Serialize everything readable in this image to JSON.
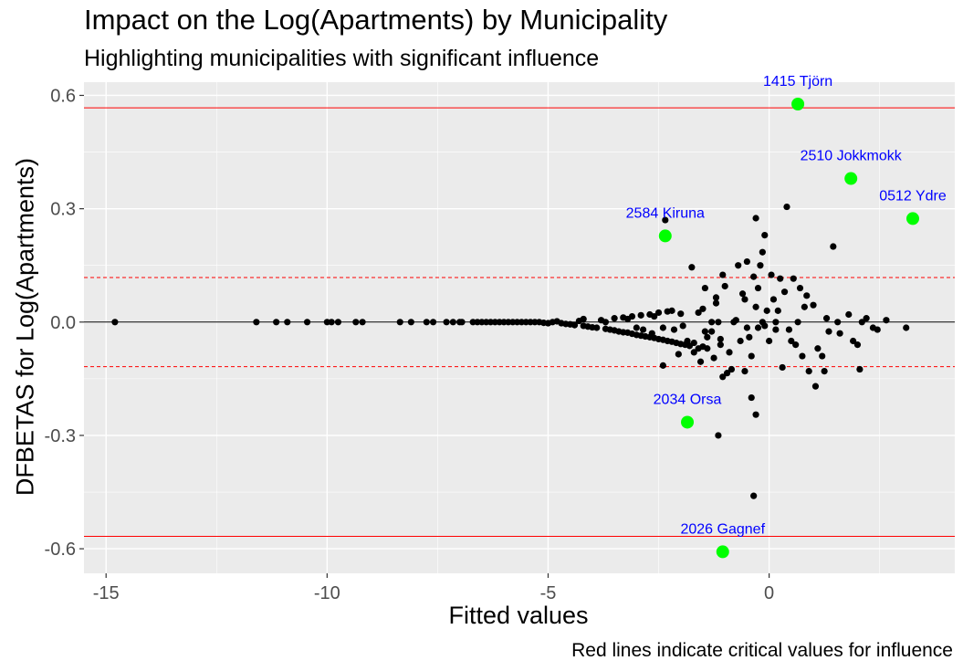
{
  "chart_data": {
    "type": "scatter",
    "title": "Impact on the Log(Apartments) by Municipality",
    "subtitle": "Highlighting municipalities with significant influence",
    "caption": "Red lines indicate critical values for influence",
    "xlabel": "Fitted values",
    "ylabel": "DFBETAS for Log(Apartments)",
    "xlim": [
      -15.5,
      4.2
    ],
    "ylim": [
      -0.665,
      0.635
    ],
    "x_ticks": [
      -15,
      -10,
      -5,
      0
    ],
    "y_ticks": [
      -0.6,
      -0.3,
      0.0,
      0.3,
      0.6
    ],
    "x_tick_labels": [
      "-15",
      "-10",
      "-5",
      "0"
    ],
    "y_tick_labels": [
      "-0.6",
      "-0.3",
      "0.0",
      "0.3",
      "0.6"
    ],
    "grid": true,
    "colors": {
      "panel_background": "#ebebeb",
      "grid": "#ffffff",
      "points": "#000000",
      "highlight_points": "#00ff00",
      "highlight_labels": "#0000ff",
      "critical_lines": "#ff0000",
      "zero_line": "#000000"
    },
    "reference_lines": {
      "zero": 0.0,
      "critical_solid": [
        0.567,
        -0.567
      ],
      "critical_dashed": [
        0.118,
        -0.118
      ]
    },
    "highlighted": [
      {
        "label": "1415 Tjörn",
        "x": 0.65,
        "y": 0.577
      },
      {
        "label": "2510 Jokkmokk",
        "x": 1.85,
        "y": 0.38
      },
      {
        "label": "0512 Ydre",
        "x": 3.25,
        "y": 0.274
      },
      {
        "label": "2584 Kiruna",
        "x": -2.35,
        "y": 0.228
      },
      {
        "label": "2034 Orsa",
        "x": -1.85,
        "y": -0.265
      },
      {
        "label": "2026 Gagnef",
        "x": -1.05,
        "y": -0.608
      }
    ],
    "points": [
      [
        -14.8,
        0.0
      ],
      [
        -11.6,
        0.0
      ],
      [
        -11.15,
        0.0
      ],
      [
        -10.9,
        0.0
      ],
      [
        -10.45,
        0.0
      ],
      [
        -10.0,
        0.0
      ],
      [
        -9.9,
        0.0
      ],
      [
        -9.75,
        0.0
      ],
      [
        -9.35,
        0.0
      ],
      [
        -9.2,
        0.0
      ],
      [
        -8.35,
        0.0
      ],
      [
        -8.1,
        0.0
      ],
      [
        -7.75,
        0.0
      ],
      [
        -7.6,
        0.0
      ],
      [
        -7.3,
        0.0
      ],
      [
        -7.15,
        0.0
      ],
      [
        -7.0,
        0.0
      ],
      [
        -6.95,
        0.0
      ],
      [
        -6.7,
        0.0
      ],
      [
        -6.6,
        0.0
      ],
      [
        -6.5,
        0.0
      ],
      [
        -6.4,
        0.0
      ],
      [
        -6.3,
        0.0
      ],
      [
        -6.2,
        0.0
      ],
      [
        -6.1,
        0.0
      ],
      [
        -6.0,
        0.0
      ],
      [
        -5.9,
        0.0
      ],
      [
        -5.8,
        0.0
      ],
      [
        -5.7,
        0.0
      ],
      [
        -5.6,
        0.0
      ],
      [
        -5.5,
        0.0
      ],
      [
        -5.4,
        0.0
      ],
      [
        -5.3,
        0.0
      ],
      [
        -5.2,
        0.0
      ],
      [
        -5.1,
        -0.002
      ],
      [
        -5.0,
        -0.003
      ],
      [
        -4.9,
        0.0
      ],
      [
        -4.8,
        0.002
      ],
      [
        -4.7,
        -0.003
      ],
      [
        -4.6,
        -0.005
      ],
      [
        -4.5,
        -0.006
      ],
      [
        -4.4,
        -0.008
      ],
      [
        -4.3,
        0.003
      ],
      [
        -4.2,
        -0.01
      ],
      [
        -4.1,
        -0.012
      ],
      [
        -4.0,
        -0.014
      ],
      [
        -3.9,
        -0.015
      ],
      [
        -3.8,
        0.005
      ],
      [
        -3.7,
        -0.018
      ],
      [
        -3.6,
        -0.02
      ],
      [
        -3.5,
        -0.022
      ],
      [
        -3.4,
        -0.025
      ],
      [
        -3.3,
        -0.027
      ],
      [
        -3.2,
        -0.028
      ],
      [
        -3.1,
        -0.031
      ],
      [
        -3.0,
        -0.034
      ],
      [
        -2.9,
        -0.036
      ],
      [
        -2.85,
        -0.02
      ],
      [
        -2.8,
        -0.038
      ],
      [
        -2.7,
        -0.04
      ],
      [
        -2.6,
        -0.042
      ],
      [
        -2.5,
        -0.045
      ],
      [
        -2.4,
        -0.047
      ],
      [
        -2.3,
        -0.05
      ],
      [
        -2.2,
        -0.052
      ],
      [
        -2.1,
        -0.055
      ],
      [
        -2.0,
        -0.058
      ],
      [
        -1.9,
        -0.06
      ],
      [
        -1.8,
        -0.063
      ],
      [
        -3.7,
        0.0
      ],
      [
        -3.5,
        0.01
      ],
      [
        -3.3,
        0.012
      ],
      [
        -3.1,
        0.015
      ],
      [
        -2.9,
        0.018
      ],
      [
        -2.7,
        0.02
      ],
      [
        -2.5,
        0.025
      ],
      [
        -2.3,
        0.028
      ],
      [
        -2.2,
        0.03
      ],
      [
        -2.0,
        0.022
      ],
      [
        -2.6,
        0.015
      ],
      [
        -3.2,
        0.008
      ],
      [
        -4.2,
        0.008
      ],
      [
        -2.4,
        -0.015
      ],
      [
        -2.15,
        -0.02
      ],
      [
        -3.0,
        -0.015
      ],
      [
        -2.35,
        0.27
      ],
      [
        -2.4,
        -0.115
      ],
      [
        -2.65,
        -0.03
      ],
      [
        -2.05,
        -0.085
      ],
      [
        -1.95,
        -0.01
      ],
      [
        -1.7,
        -0.055
      ],
      [
        -1.6,
        -0.07
      ],
      [
        -1.5,
        -0.065
      ],
      [
        -1.4,
        -0.04
      ],
      [
        -1.3,
        -0.025
      ],
      [
        -1.25,
        -0.095
      ],
      [
        -1.2,
        0.05
      ],
      [
        -1.15,
        0.0
      ],
      [
        -1.1,
        -0.06
      ],
      [
        -1.05,
        -0.145
      ],
      [
        -1.6,
        0.025
      ],
      [
        -1.5,
        0.035
      ],
      [
        -1.7,
        -0.08
      ],
      [
        -1.75,
        0.145
      ],
      [
        -1.55,
        -0.105
      ],
      [
        -1.45,
        0.09
      ],
      [
        -1.4,
        -0.07
      ],
      [
        -1.3,
        0.0
      ],
      [
        -1.2,
        0.065
      ],
      [
        -1.1,
        -0.045
      ],
      [
        -1.0,
        0.095
      ],
      [
        -1.05,
        0.125
      ],
      [
        -0.95,
        -0.135
      ],
      [
        -0.9,
        -0.08
      ],
      [
        -0.85,
        -0.125
      ],
      [
        -0.8,
        0.0
      ],
      [
        -0.75,
        0.005
      ],
      [
        -0.7,
        0.15
      ],
      [
        -0.65,
        -0.05
      ],
      [
        -0.6,
        0.075
      ],
      [
        -0.55,
        0.06
      ],
      [
        -0.5,
        -0.015
      ],
      [
        -0.45,
        -0.04
      ],
      [
        -0.4,
        -0.09
      ],
      [
        -0.35,
        0.12
      ],
      [
        -0.3,
        0.04
      ],
      [
        -0.25,
        0.09
      ],
      [
        -0.2,
        0.15
      ],
      [
        -0.15,
        0.0
      ],
      [
        -0.1,
        -0.01
      ],
      [
        -0.05,
        0.03
      ],
      [
        0.0,
        -0.05
      ],
      [
        0.05,
        0.125
      ],
      [
        0.1,
        0.06
      ],
      [
        0.15,
        0.0
      ],
      [
        0.2,
        0.03
      ],
      [
        0.25,
        0.115
      ],
      [
        0.3,
        -0.12
      ],
      [
        0.35,
        0.08
      ],
      [
        0.4,
        0.305
      ],
      [
        0.45,
        -0.02
      ],
      [
        0.5,
        -0.05
      ],
      [
        0.55,
        0.115
      ],
      [
        0.6,
        -0.06
      ],
      [
        0.65,
        0.0
      ],
      [
        0.7,
        0.09
      ],
      [
        0.75,
        -0.09
      ],
      [
        0.8,
        0.04
      ],
      [
        0.85,
        0.07
      ],
      [
        0.9,
        -0.13
      ],
      [
        1.0,
        0.045
      ],
      [
        1.05,
        -0.17
      ],
      [
        1.1,
        -0.07
      ],
      [
        1.2,
        -0.09
      ],
      [
        1.25,
        -0.13
      ],
      [
        1.3,
        0.01
      ],
      [
        1.35,
        -0.025
      ],
      [
        1.45,
        0.2
      ],
      [
        1.55,
        0.0
      ],
      [
        1.6,
        -0.03
      ],
      [
        1.8,
        0.02
      ],
      [
        1.9,
        -0.05
      ],
      [
        2.0,
        -0.06
      ],
      [
        2.05,
        -0.125
      ],
      [
        2.1,
        0.0
      ],
      [
        2.2,
        0.01
      ],
      [
        2.35,
        -0.015
      ],
      [
        2.45,
        -0.02
      ],
      [
        2.65,
        0.005
      ],
      [
        3.1,
        -0.015
      ],
      [
        -0.3,
        0.275
      ],
      [
        -0.15,
        0.185
      ],
      [
        -0.5,
        0.16
      ],
      [
        -0.1,
        0.23
      ],
      [
        -0.3,
        -0.245
      ],
      [
        -0.4,
        -0.2
      ],
      [
        -0.35,
        -0.46
      ],
      [
        -1.15,
        -0.3
      ],
      [
        -1.45,
        -0.025
      ],
      [
        -0.55,
        -0.13
      ],
      [
        -1.85,
        -0.05
      ],
      [
        -0.25,
        -0.015
      ],
      [
        0.15,
        -0.02
      ]
    ]
  }
}
